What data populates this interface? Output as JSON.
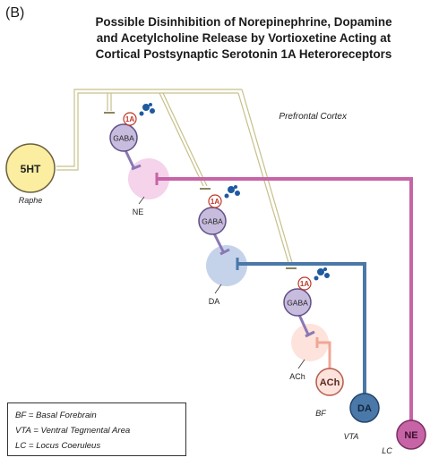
{
  "panel_label": "(B)",
  "title": {
    "line1": "Possible Disinhibition of Norepinephrine, Dopamine",
    "line2": "and Acetylcholine Release by Vortioxetine Acting at",
    "line3": "Cortical Postsynaptic Serotonin 1A Heteroreceptors"
  },
  "region_label": "Prefrontal Cortex",
  "nodes": {
    "serotonin": "5HT",
    "raphe": "Raphe",
    "gaba": "GABA",
    "receptor": "1A",
    "ne_terminal": "NE",
    "da_terminal": "DA",
    "ach_terminal": "ACh",
    "ach_source": "ACh",
    "bf": "BF",
    "da_source": "DA",
    "vta": "VTA",
    "ne_source": "NE",
    "lc": "LC"
  },
  "legend": {
    "bf": "BF = Basal Forebrain",
    "vta": "VTA = Ventral Tegmental Area",
    "lc": "LC = Locus Coeruleus"
  },
  "colors": {
    "serotonin_fill": "#fbeea0",
    "serotonin_axon": "#d4d090",
    "gaba_fill": "#c7bcdd",
    "ne": "#c764a6",
    "ne_light": "#f5d3ea",
    "da": "#4a78a8",
    "da_light": "#c5d3ea",
    "ach": "#f0a796",
    "ach_light": "#fde3dc",
    "drug_icon": "#1e5aa0"
  }
}
